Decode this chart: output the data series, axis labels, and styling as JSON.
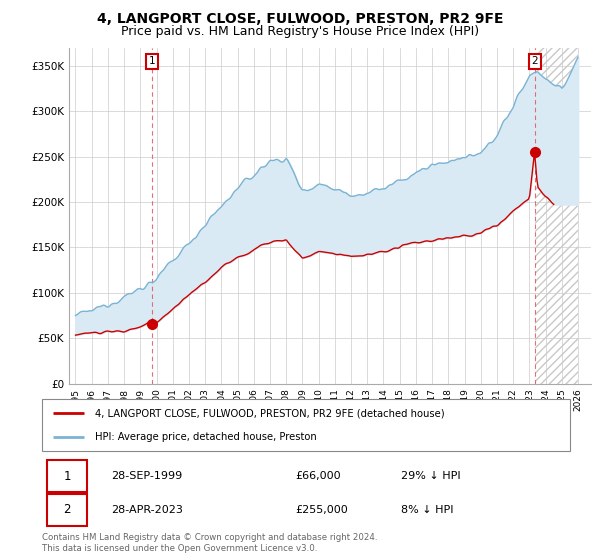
{
  "title": "4, LANGPORT CLOSE, FULWOOD, PRESTON, PR2 9FE",
  "subtitle": "Price paid vs. HM Land Registry's House Price Index (HPI)",
  "ylim": [
    0,
    370000
  ],
  "hpi_color": "#7ab3d4",
  "hpi_fill_color": "#daeaf5",
  "sold_color": "#cc0000",
  "background_color": "#ffffff",
  "grid_color": "#cccccc",
  "sale1_date": 1999.74,
  "sale1_price": 66000,
  "sale2_date": 2023.32,
  "sale2_price": 255000,
  "legend_line1": "4, LANGPORT CLOSE, FULWOOD, PRESTON, PR2 9FE (detached house)",
  "legend_line2": "HPI: Average price, detached house, Preston",
  "table_row1": [
    "1",
    "28-SEP-1999",
    "£66,000",
    "29% ↓ HPI"
  ],
  "table_row2": [
    "2",
    "28-APR-2023",
    "£255,000",
    "8% ↓ HPI"
  ],
  "footnote": "Contains HM Land Registry data © Crown copyright and database right 2024.\nThis data is licensed under the Open Government Licence v3.0.",
  "title_fontsize": 10,
  "subtitle_fontsize": 9
}
